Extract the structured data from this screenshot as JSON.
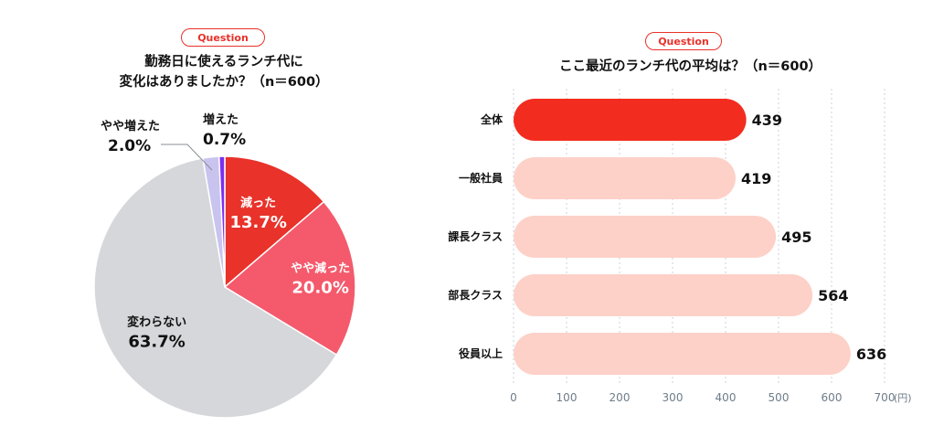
{
  "colors": {
    "accent": "#e8322a",
    "pie_decreased": "#e8322a",
    "pie_slightly_decreased": "#f45a6c",
    "pie_unchanged": "#d6d7db",
    "pie_slightly_increased": "#c9c3ef",
    "pie_increased": "#7b2ff0",
    "bar_highlight": "#f22c1e",
    "bar_normal": "#fdd1c8",
    "grid": "#c8d2dc",
    "tick": "#6e7c88"
  },
  "left": {
    "badge": "Question",
    "title_line1": "勤務日に使えるランチ代に",
    "title_line2": "変化はありましたか？（n＝600）"
  },
  "right": {
    "badge": "Question",
    "title": "ここ最近のランチ代の平均は？（n＝600）"
  },
  "chart_data": [
    {
      "type": "pie",
      "start": "12 o'clock",
      "direction": "clockwise",
      "slices": [
        {
          "label": "減った",
          "value": 13.7,
          "display": "13.7%",
          "color": "#e8322a",
          "label_position": "inside"
        },
        {
          "label": "やや減った",
          "value": 20.0,
          "display": "20.0%",
          "color": "#f45a6c",
          "label_position": "inside"
        },
        {
          "label": "変わらない",
          "value": 63.7,
          "display": "63.7%",
          "color": "#d6d7db",
          "label_position": "inside"
        },
        {
          "label": "やや増えた",
          "value": 2.0,
          "display": "2.0%",
          "color": "#c9c3ef",
          "label_position": "outside-left"
        },
        {
          "label": "増えた",
          "value": 0.7,
          "display": "0.7%",
          "color": "#7b2ff0",
          "label_position": "outside-top"
        }
      ]
    },
    {
      "type": "bar",
      "orientation": "horizontal",
      "categories": [
        "全体",
        "一般社員",
        "課長クラス",
        "部長クラス",
        "役員以上"
      ],
      "values": [
        439,
        419,
        495,
        564,
        636
      ],
      "highlight_index": 0,
      "xlim": [
        0,
        700
      ],
      "xticks": [
        "0",
        "100",
        "200",
        "300",
        "400",
        "500",
        "600",
        "700"
      ],
      "unit_label": "(円)",
      "grid": true
    }
  ]
}
